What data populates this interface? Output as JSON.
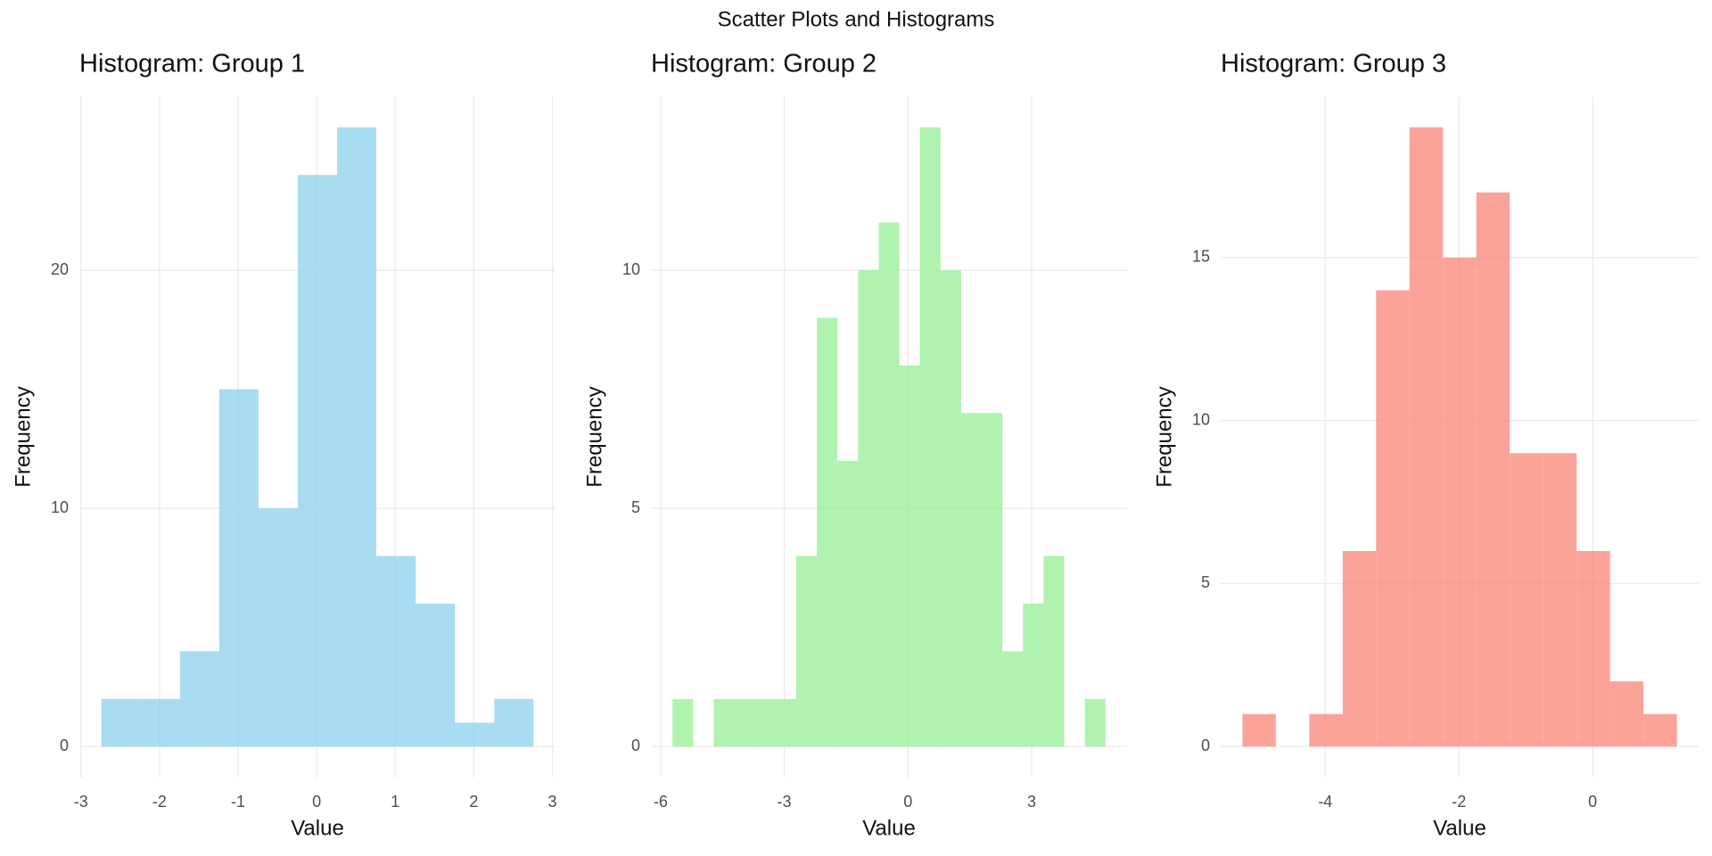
{
  "title": "Scatter Plots and Histograms",
  "chart_data": [
    {
      "type": "histogram",
      "title": "Histogram: Group 1",
      "x_label": "Value",
      "y_label": "Frequency",
      "bins": [
        -2.74,
        -2.24,
        -1.74,
        -1.24,
        -0.74,
        -0.24,
        0.26,
        0.76,
        1.26,
        1.76,
        2.26,
        2.76
      ],
      "values": [
        2,
        2,
        4,
        15,
        10,
        24,
        26,
        8,
        6,
        1,
        2
      ],
      "color": "#87CEEB",
      "xlim": [
        -3.02,
        3.04
      ],
      "ylim": [
        -1.3,
        27.3
      ],
      "xticks": [
        -3,
        -2,
        -1,
        0,
        1,
        2,
        3
      ],
      "yticks": [
        0,
        10,
        20
      ],
      "grid": true
    },
    {
      "type": "histogram",
      "title": "Histogram: Group 2",
      "x_label": "Value",
      "y_label": "Frequency",
      "bins": [
        -5.71,
        -5.21,
        -4.71,
        -4.21,
        -3.71,
        -3.21,
        -2.71,
        -2.21,
        -1.71,
        -1.21,
        -0.71,
        -0.21,
        0.29,
        0.79,
        1.29,
        1.79,
        2.29,
        2.79,
        3.29,
        3.79,
        4.29,
        4.79
      ],
      "values": [
        1,
        0,
        1,
        1,
        1,
        1,
        4,
        9,
        6,
        10,
        11,
        8,
        13,
        10,
        7,
        7,
        2,
        3,
        4,
        0,
        1
      ],
      "color": "#90EE90",
      "xlim": [
        -6.235,
        5.315
      ],
      "ylim": [
        -0.65,
        13.65
      ],
      "xticks": [
        -6,
        -3,
        0,
        3
      ],
      "yticks": [
        0,
        5,
        10
      ],
      "grid": true
    },
    {
      "type": "histogram",
      "title": "Histogram: Group 3",
      "x_label": "Value",
      "y_label": "Frequency",
      "bins": [
        -5.24,
        -4.74,
        -4.24,
        -3.74,
        -3.24,
        -2.74,
        -2.24,
        -1.74,
        -1.24,
        -0.74,
        -0.24,
        0.26,
        0.76,
        1.26
      ],
      "values": [
        1,
        0,
        1,
        6,
        14,
        19,
        15,
        17,
        9,
        9,
        6,
        2,
        1
      ],
      "color": "#FA8072",
      "xlim": [
        -5.565,
        1.585
      ],
      "ylim": [
        -0.95,
        19.95
      ],
      "xticks": [
        -4,
        -2,
        0
      ],
      "yticks": [
        0,
        5,
        10,
        15
      ],
      "grid": true
    }
  ]
}
